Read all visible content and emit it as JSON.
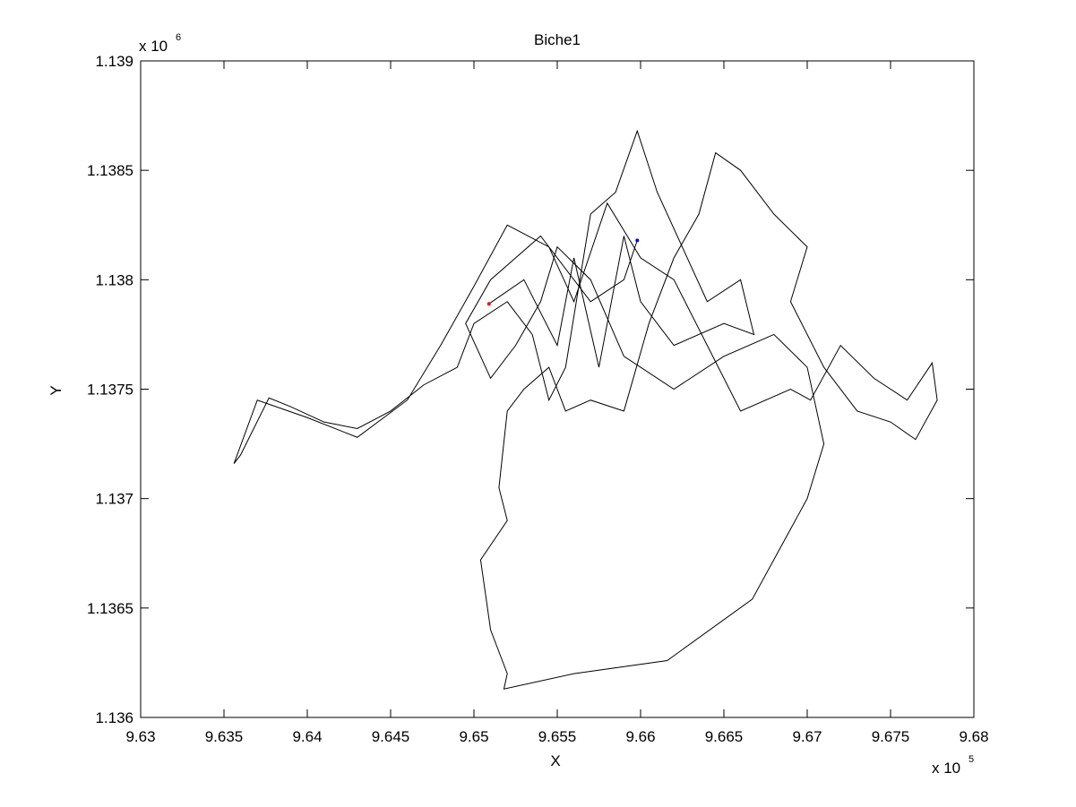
{
  "chart_data": {
    "type": "line",
    "title": "Biche1",
    "xlabel": "X",
    "ylabel": "Y",
    "x_multiplier": {
      "text": "x 10",
      "exponent": "5"
    },
    "y_multiplier": {
      "text": "x 10",
      "exponent": "6"
    },
    "color": "#000000",
    "x": [
      9.6509,
      9.653,
      9.655,
      9.656,
      9.6575,
      9.659,
      9.66,
      9.662,
      9.665,
      9.6668,
      9.666,
      9.664,
      9.661,
      9.6598,
      9.6585,
      9.657,
      9.6555,
      9.6545,
      9.6535,
      9.652,
      9.65,
      9.649,
      9.647,
      9.645,
      9.643,
      9.641,
      9.639,
      9.6377,
      9.636,
      9.6356,
      9.637,
      9.64,
      9.643,
      9.646,
      9.648,
      9.65,
      9.652,
      9.6545,
      9.656,
      9.658,
      9.66,
      9.662,
      9.664,
      9.666,
      9.669,
      9.6702,
      9.672,
      9.674,
      9.676,
      9.6775,
      9.6778,
      9.6765,
      9.675,
      9.673,
      9.671,
      9.669,
      9.67,
      9.668,
      9.666,
      9.6645,
      9.6635,
      9.662,
      9.6605,
      9.659,
      9.657,
      9.6555,
      9.6545,
      9.653,
      9.652,
      9.6515,
      9.652,
      9.6504,
      9.651,
      9.652,
      9.6518,
      9.656,
      9.6616,
      9.6667,
      9.67,
      9.671,
      9.67,
      9.668,
      9.665,
      9.662,
      9.659,
      9.657,
      9.655,
      9.654,
      9.6525,
      9.651,
      9.6495,
      9.651,
      9.654,
      9.657,
      9.659,
      9.6598
    ],
    "y": [
      1.13789,
      1.138,
      1.1377,
      1.1381,
      1.1376,
      1.1382,
      1.1379,
      1.1377,
      1.1378,
      1.13775,
      1.138,
      1.1379,
      1.1384,
      1.13868,
      1.1384,
      1.1383,
      1.1376,
      1.13745,
      1.13775,
      1.1379,
      1.1378,
      1.1376,
      1.13752,
      1.1374,
      1.13732,
      1.13735,
      1.13742,
      1.13746,
      1.1372,
      1.13716,
      1.13745,
      1.13737,
      1.13728,
      1.13745,
      1.1377,
      1.13797,
      1.13825,
      1.13815,
      1.1379,
      1.13835,
      1.1381,
      1.138,
      1.1377,
      1.1374,
      1.1375,
      1.13745,
      1.1377,
      1.13755,
      1.13745,
      1.13762,
      1.13745,
      1.13727,
      1.13735,
      1.1374,
      1.1376,
      1.1379,
      1.13815,
      1.1383,
      1.1385,
      1.13858,
      1.1383,
      1.1381,
      1.1378,
      1.1374,
      1.13745,
      1.1374,
      1.1376,
      1.1375,
      1.1374,
      1.13705,
      1.1369,
      1.13672,
      1.1364,
      1.1362,
      1.13613,
      1.1362,
      1.13626,
      1.13654,
      1.137,
      1.13725,
      1.1376,
      1.13775,
      1.13765,
      1.1375,
      1.13765,
      1.138,
      1.13815,
      1.1379,
      1.1377,
      1.13755,
      1.1378,
      1.138,
      1.1382,
      1.1379,
      1.138,
      1.13818
    ],
    "markers": [
      {
        "x": 9.6509,
        "y": 1.13789,
        "color": "#ff0000"
      },
      {
        "x": 9.6598,
        "y": 1.13818,
        "color": "#0000ff"
      }
    ],
    "xlim": [
      9.63,
      9.68
    ],
    "xticks": [
      9.63,
      9.635,
      9.64,
      9.645,
      9.65,
      9.655,
      9.66,
      9.665,
      9.67,
      9.675,
      9.68
    ],
    "ylim": [
      1.136,
      1.139
    ],
    "yticks": [
      1.136,
      1.1365,
      1.137,
      1.1375,
      1.138,
      1.1385,
      1.139
    ]
  }
}
